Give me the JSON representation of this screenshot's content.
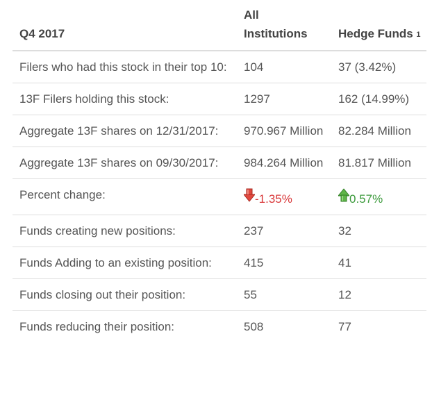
{
  "header": {
    "period": "Q4 2017",
    "col_all": "All Institutions",
    "col_hedge": "Hedge Funds",
    "col_hedge_note": "1"
  },
  "rows": [
    {
      "label": "Filers who had this stock in their top 10:",
      "all": "104",
      "hedge": "37 (3.42%)"
    },
    {
      "label": "13F Filers holding this stock:",
      "all": "1297",
      "hedge": "162 (14.99%)"
    },
    {
      "label": "Aggregate 13F shares on 12/31/2017:",
      "all": "970.967 Million",
      "hedge": "82.284 Million"
    },
    {
      "label": "Aggregate 13F shares on 09/30/2017:",
      "all": "984.264 Million",
      "hedge": "81.817 Million"
    },
    {
      "label": "Percent change:",
      "all": "-1.35%",
      "hedge": "0.57%",
      "all_icon": "arrow-down-icon",
      "hedge_icon": "arrow-up-icon"
    },
    {
      "label": "Funds creating new positions:",
      "all": "237",
      "hedge": "32"
    },
    {
      "label": "Funds Adding to an existing position:",
      "all": "415",
      "hedge": "41"
    },
    {
      "label": "Funds closing out their position:",
      "all": "55",
      "hedge": "12"
    },
    {
      "label": "Funds reducing their position:",
      "all": "508",
      "hedge": "77"
    }
  ],
  "colors": {
    "negative": "#d9383a",
    "positive": "#3c9a3c",
    "border": "#dddddd",
    "text": "#555555"
  }
}
